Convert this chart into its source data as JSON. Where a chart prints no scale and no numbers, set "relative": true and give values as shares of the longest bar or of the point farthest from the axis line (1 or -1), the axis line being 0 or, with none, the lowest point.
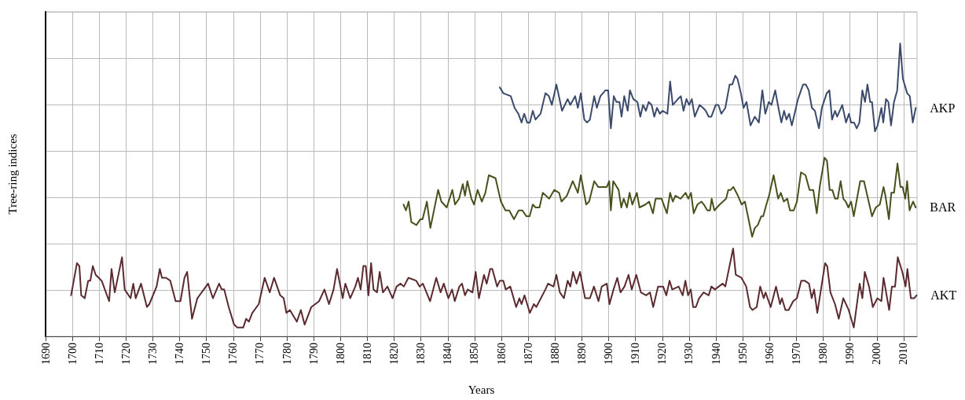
{
  "chart_data": {
    "type": "line",
    "relative": true,
    "xlabel": "Years",
    "ylabel": "Tree-ring indices",
    "xlim": [
      1690,
      2015
    ],
    "xticks": [
      1690,
      1700,
      1710,
      1720,
      1730,
      1740,
      1750,
      1760,
      1770,
      1780,
      1790,
      1800,
      1810,
      1820,
      1830,
      1840,
      1850,
      1860,
      1870,
      1880,
      1890,
      1900,
      1910,
      1920,
      1930,
      1940,
      1950,
      1960,
      1970,
      1980,
      1990,
      2000,
      2010
    ],
    "grid": true,
    "legend": false,
    "marker": "none",
    "line_style": "solid",
    "series": [
      {
        "name": "AKP",
        "color": "#3b4a6b",
        "x": [
          1859.4,
          1860.7,
          1863.5,
          1864.9,
          1866.3,
          1867.5,
          1868.5,
          1869.6,
          1870.6,
          1871.7,
          1872.7,
          1874.6,
          1876.4,
          1877.7,
          1878.8,
          1880.5,
          1882.6,
          1884.7,
          1885.7,
          1887.5,
          1888.5,
          1889.6,
          1890.9,
          1891.9,
          1893.0,
          1894.6,
          1895.6,
          1896.9,
          1898.8,
          1899.8,
          1900.8,
          1901.9,
          1902.9,
          1904.0,
          1904.8,
          1905.8,
          1907.1,
          1907.9,
          1909.2,
          1910.7,
          1911.8,
          1912.8,
          1913.9,
          1914.9,
          1916.0,
          1917.0,
          1918.0,
          1919.1,
          1920.1,
          1921.9,
          1922.9,
          1923.9,
          1925.8,
          1926.9,
          1927.9,
          1929.0,
          1930.0,
          1931.0,
          1932.1,
          1933.9,
          1935.2,
          1936.2,
          1937.3,
          1938.3,
          1939.9,
          1940.9,
          1942.0,
          1943.5,
          1945.1,
          1946.1,
          1947.2,
          1948.0,
          1949.3,
          1950.3,
          1951.4,
          1952.9,
          1954.5,
          1956.0,
          1957.3,
          1958.4,
          1959.7,
          1960.7,
          1962.1,
          1963.3,
          1964.4,
          1965.4,
          1966.3,
          1967.3,
          1968.3,
          1970.6,
          1972.5,
          1973.5,
          1974.6,
          1975.8,
          1976.9,
          1978.4,
          1979.5,
          1981.3,
          1982.3,
          1983.3,
          1984.4,
          1985.2,
          1987.1,
          1988.5,
          1989.6,
          1990.4,
          1991.5,
          1992.5,
          1993.5,
          1994.6,
          1995.6,
          1996.5,
          1997.5,
          1998.2,
          1999.3,
          2000.3,
          2001.7,
          2002.4,
          2003.4,
          2004.3,
          2005.3,
          2006.4,
          2007.6,
          2008.7,
          2009.7,
          2011.3,
          2012.3,
          2013.4,
          2014.5
        ],
        "values": [
          0.85,
          0.83,
          0.82,
          0.78,
          0.76,
          0.73,
          0.76,
          0.73,
          0.73,
          0.77,
          0.74,
          0.76,
          0.83,
          0.82,
          0.79,
          0.86,
          0.77,
          0.81,
          0.79,
          0.82,
          0.78,
          0.83,
          0.74,
          0.73,
          0.74,
          0.82,
          0.78,
          0.82,
          0.84,
          0.84,
          0.71,
          0.82,
          0.8,
          0.8,
          0.75,
          0.82,
          0.77,
          0.84,
          0.81,
          0.8,
          0.75,
          0.79,
          0.77,
          0.8,
          0.79,
          0.75,
          0.78,
          0.76,
          0.77,
          0.76,
          0.87,
          0.79,
          0.81,
          0.82,
          0.77,
          0.81,
          0.79,
          0.81,
          0.75,
          0.79,
          0.78,
          0.77,
          0.75,
          0.75,
          0.79,
          0.79,
          0.76,
          0.78,
          0.86,
          0.86,
          0.89,
          0.88,
          0.83,
          0.78,
          0.8,
          0.72,
          0.75,
          0.73,
          0.84,
          0.76,
          0.8,
          0.79,
          0.84,
          0.78,
          0.73,
          0.77,
          0.74,
          0.76,
          0.72,
          0.81,
          0.86,
          0.86,
          0.84,
          0.78,
          0.77,
          0.71,
          0.78,
          0.83,
          0.84,
          0.74,
          0.77,
          0.75,
          0.79,
          0.73,
          0.76,
          0.73,
          0.73,
          0.71,
          0.73,
          0.84,
          0.8,
          0.86,
          0.8,
          0.8,
          0.7,
          0.72,
          0.78,
          0.73,
          0.81,
          0.8,
          0.72,
          0.8,
          0.84,
          1,
          0.88,
          0.83,
          0.82,
          0.73,
          0.78
        ]
      },
      {
        "name": "BAR",
        "color": "#45521c",
        "x": [
          1823.5,
          1824.4,
          1825.4,
          1826.4,
          1828.3,
          1829.8,
          1830.6,
          1832.2,
          1833.5,
          1836.4,
          1837.6,
          1839.6,
          1841.7,
          1842.7,
          1844.2,
          1845.6,
          1846.4,
          1847.3,
          1848.8,
          1849.8,
          1851.1,
          1852.7,
          1854.0,
          1855.3,
          1857.8,
          1859.8,
          1861.5,
          1862.9,
          1864.7,
          1866.4,
          1867.8,
          1869.3,
          1870.5,
          1871.7,
          1872.7,
          1874.2,
          1875.4,
          1877.8,
          1879.7,
          1881.5,
          1882.4,
          1884.4,
          1886.6,
          1888.5,
          1889.6,
          1891.6,
          1892.7,
          1894.6,
          1896.1,
          1897.5,
          1899.3,
          1900.2,
          1900.8,
          1901.7,
          1903.7,
          1904.7,
          1905.6,
          1906.8,
          1907.8,
          1908.8,
          1910.5,
          1911.5,
          1913.7,
          1915.1,
          1916.5,
          1917.5,
          1919.7,
          1921.7,
          1922.9,
          1923.9,
          1924.9,
          1926.8,
          1928.7,
          1929.7,
          1930.7,
          1931.7,
          1933.1,
          1934.6,
          1935.5,
          1936.8,
          1937.8,
          1938.4,
          1939.4,
          1941.4,
          1943.8,
          1944.6,
          1945.5,
          1946.5,
          1948.2,
          1949.6,
          1950.8,
          1953.5,
          1954.5,
          1955.6,
          1956.9,
          1957.6,
          1958.8,
          1959.8,
          1961.5,
          1963.2,
          1964.2,
          1965.3,
          1966.6,
          1967.6,
          1969.0,
          1970.2,
          1971.7,
          1973.4,
          1974.9,
          1976.3,
          1977.6,
          1978.7,
          1980.5,
          1981.4,
          1982.4,
          1983.4,
          1984.4,
          1985.4,
          1986.5,
          1987.5,
          1988.4,
          1989.4,
          1990.4,
          1991.4,
          1993.8,
          1995.2,
          1998.2,
          1999.6,
          2001.1,
          2002.5,
          2003.2,
          2004.5,
          2005.4,
          2006.4,
          2007.7,
          2008.8,
          2009.6,
          2010.6,
          2011.3,
          2012.2,
          2013.5,
          2014.5
        ],
        "values": [
          0.45,
          0.43,
          0.46,
          0.39,
          0.38,
          0.4,
          0.4,
          0.46,
          0.37,
          0.5,
          0.46,
          0.44,
          0.5,
          0.45,
          0.47,
          0.52,
          0.48,
          0.53,
          0.47,
          0.45,
          0.5,
          0.46,
          0.49,
          0.55,
          0.54,
          0.46,
          0.43,
          0.43,
          0.4,
          0.43,
          0.43,
          0.41,
          0.41,
          0.45,
          0.44,
          0.44,
          0.49,
          0.47,
          0.5,
          0.49,
          0.46,
          0.48,
          0.53,
          0.49,
          0.55,
          0.45,
          0.46,
          0.53,
          0.51,
          0.51,
          0.51,
          0.53,
          0.43,
          0.53,
          0.5,
          0.44,
          0.47,
          0.44,
          0.49,
          0.45,
          0.49,
          0.44,
          0.45,
          0.46,
          0.42,
          0.47,
          0.47,
          0.42,
          0.49,
          0.46,
          0.48,
          0.47,
          0.49,
          0.47,
          0.49,
          0.42,
          0.45,
          0.46,
          0.45,
          0.43,
          0.43,
          0.47,
          0.43,
          0.45,
          0.47,
          0.5,
          0.5,
          0.51,
          0.48,
          0.45,
          0.46,
          0.34,
          0.37,
          0.38,
          0.41,
          0.41,
          0.45,
          0.48,
          0.55,
          0.47,
          0.49,
          0.46,
          0.47,
          0.43,
          0.43,
          0.46,
          0.56,
          0.55,
          0.5,
          0.5,
          0.42,
          0.51,
          0.61,
          0.6,
          0.5,
          0.5,
          0.47,
          0.47,
          0.53,
          0.47,
          0.46,
          0.44,
          0.46,
          0.41,
          0.53,
          0.53,
          0.41,
          0.44,
          0.45,
          0.51,
          0.48,
          0.4,
          0.49,
          0.49,
          0.59,
          0.51,
          0.51,
          0.47,
          0.53,
          0.43,
          0.46,
          0.44
        ]
      },
      {
        "name": "AKT",
        "color": "#5a2a2e",
        "x": [
          1699.5,
          1701.7,
          1702.6,
          1703.3,
          1704.6,
          1705.9,
          1706.7,
          1707.6,
          1708.7,
          1710.9,
          1713.7,
          1714.6,
          1715.8,
          1718.5,
          1719.5,
          1721.7,
          1722.7,
          1723.6,
          1725.6,
          1727.8,
          1728.7,
          1731.4,
          1732.6,
          1733.4,
          1734.9,
          1736.5,
          1738.5,
          1740.3,
          1741.8,
          1742.8,
          1744.6,
          1746.6,
          1749.0,
          1750.6,
          1752.4,
          1754.7,
          1755.7,
          1756.6,
          1758.3,
          1760.3,
          1761.5,
          1763.7,
          1764.8,
          1765.8,
          1767.1,
          1769.5,
          1771.7,
          1773.6,
          1775.2,
          1777.5,
          1778.8,
          1779.8,
          1781.1,
          1783.7,
          1785.2,
          1786.6,
          1789.1,
          1792.0,
          1794.0,
          1795.7,
          1797.4,
          1798.7,
          1800.8,
          1801.8,
          1803.6,
          1805.5,
          1806.5,
          1807.5,
          1808.5,
          1809.4,
          1810.4,
          1811.4,
          1812.3,
          1813.6,
          1814.6,
          1815.8,
          1817.5,
          1819.4,
          1820.9,
          1822.4,
          1823.6,
          1825.3,
          1828.2,
          1829.5,
          1830.7,
          1833.4,
          1835.7,
          1837.3,
          1838.5,
          1840.2,
          1841.6,
          1842.6,
          1844.3,
          1845.3,
          1846.4,
          1847.4,
          1849.2,
          1850.4,
          1851.6,
          1853.5,
          1854.5,
          1855.8,
          1856.6,
          1858.4,
          1859.4,
          1860.7,
          1861.6,
          1863.3,
          1865.5,
          1866.7,
          1867.5,
          1868.6,
          1870.6,
          1872.1,
          1873.0,
          1876.4,
          1877.4,
          1879.4,
          1880.5,
          1881.8,
          1883.3,
          1884.7,
          1885.7,
          1886.7,
          1888.0,
          1889.3,
          1891.2,
          1893.0,
          1894.5,
          1896.2,
          1897.4,
          1899.3,
          1900.3,
          1901.8,
          1903.2,
          1904.4,
          1905.9,
          1907.4,
          1908.6,
          1910.3,
          1912.0,
          1914.0,
          1915.4,
          1916.6,
          1918.4,
          1920.3,
          1921.5,
          1922.7,
          1923.7,
          1926.1,
          1927.6,
          1928.6,
          1929.6,
          1930.6,
          1931.5,
          1932.5,
          1933.7,
          1935.4,
          1937.3,
          1938.3,
          1939.6,
          1942.5,
          1943.5,
          1946.4,
          1947.4,
          1949.5,
          1951.3,
          1952.7,
          1953.6,
          1955.2,
          1956.5,
          1957.8,
          1958.5,
          1960.4,
          1962.4,
          1963.9,
          1964.6,
          1965.9,
          1967.1,
          1968.8,
          1970.2,
          1971.8,
          1973.1,
          1974.7,
          1975.7,
          1976.6,
          1977.8,
          1979.0,
          1980.7,
          1981.5,
          1982.7,
          1984.4,
          1985.8,
          1987.5,
          1989.5,
          1991.4,
          1993.6,
          1994.6,
          1995.5,
          1997.1,
          1998.5,
          2000.2,
          2001.7,
          2002.5,
          2004.6,
          2005.6,
          2006.8,
          2007.8,
          2009.5,
          2010.7,
          2011.4,
          2012.7,
          2013.9,
          2014.8
        ],
        "values": [
          0.14,
          0.25,
          0.24,
          0.14,
          0.13,
          0.19,
          0.19,
          0.24,
          0.21,
          0.19,
          0.12,
          0.23,
          0.15,
          0.27,
          0.16,
          0.13,
          0.18,
          0.13,
          0.18,
          0.1,
          0.11,
          0.17,
          0.23,
          0.2,
          0.2,
          0.19,
          0.12,
          0.12,
          0.2,
          0.22,
          0.06,
          0.13,
          0.16,
          0.18,
          0.13,
          0.18,
          0.16,
          0.16,
          0.1,
          0.04,
          0.03,
          0.03,
          0.06,
          0.05,
          0.08,
          0.11,
          0.2,
          0.15,
          0.2,
          0.14,
          0.13,
          0.08,
          0.09,
          0.05,
          0.09,
          0.04,
          0.1,
          0.12,
          0.16,
          0.11,
          0.16,
          0.23,
          0.13,
          0.18,
          0.13,
          0.17,
          0.2,
          0.16,
          0.24,
          0.24,
          0.14,
          0.25,
          0.16,
          0.15,
          0.22,
          0.15,
          0.17,
          0.13,
          0.17,
          0.18,
          0.17,
          0.2,
          0.19,
          0.17,
          0.18,
          0.12,
          0.2,
          0.15,
          0.18,
          0.13,
          0.16,
          0.12,
          0.17,
          0.18,
          0.14,
          0.16,
          0.15,
          0.22,
          0.13,
          0.21,
          0.18,
          0.23,
          0.23,
          0.17,
          0.19,
          0.19,
          0.16,
          0.17,
          0.1,
          0.13,
          0.11,
          0.14,
          0.08,
          0.11,
          0.1,
          0.16,
          0.18,
          0.17,
          0.21,
          0.15,
          0.13,
          0.19,
          0.17,
          0.22,
          0.18,
          0.22,
          0.13,
          0.13,
          0.17,
          0.12,
          0.17,
          0.18,
          0.11,
          0.16,
          0.2,
          0.15,
          0.17,
          0.21,
          0.16,
          0.21,
          0.15,
          0.14,
          0.15,
          0.1,
          0.17,
          0.17,
          0.14,
          0.19,
          0.16,
          0.17,
          0.14,
          0.19,
          0.14,
          0.16,
          0.1,
          0.1,
          0.13,
          0.15,
          0.14,
          0.17,
          0.16,
          0.18,
          0.17,
          0.3,
          0.21,
          0.2,
          0.17,
          0.1,
          0.09,
          0.1,
          0.17,
          0.13,
          0.15,
          0.1,
          0.17,
          0.11,
          0.13,
          0.09,
          0.09,
          0.12,
          0.13,
          0.19,
          0.19,
          0.18,
          0.13,
          0.16,
          0.08,
          0.15,
          0.25,
          0.24,
          0.15,
          0.11,
          0.06,
          0.13,
          0.09,
          0.03,
          0.18,
          0.13,
          0.22,
          0.17,
          0.1,
          0.13,
          0.12,
          0.2,
          0.09,
          0.17,
          0.17,
          0.27,
          0.22,
          0.17,
          0.23,
          0.13,
          0.13,
          0.14
        ]
      }
    ]
  }
}
